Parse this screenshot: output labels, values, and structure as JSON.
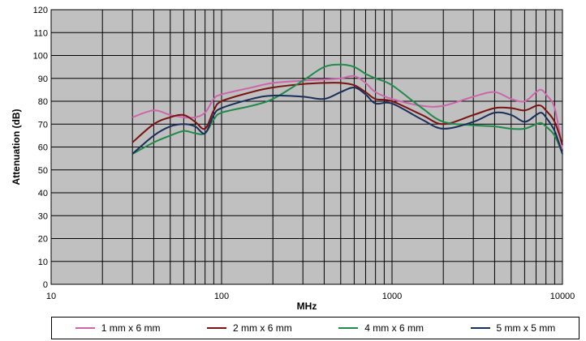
{
  "chart_data": {
    "type": "line",
    "xlabel": "MHz",
    "ylabel": "Attenuation (dB)",
    "xscale": "log",
    "xlim": [
      10,
      10000
    ],
    "ylim": [
      0,
      120
    ],
    "xticks": [
      "10",
      "100",
      "1000",
      "10000"
    ],
    "yticks": [
      "0",
      "10",
      "20",
      "30",
      "40",
      "50",
      "60",
      "70",
      "80",
      "90",
      "100",
      "110",
      "120"
    ],
    "grid": true,
    "plot_background": "#c0c0c0",
    "legend_position": "bottom",
    "series": [
      {
        "name": "1 mm x 6 mm",
        "color": "#cc66aa",
        "points": [
          [
            30,
            73
          ],
          [
            40,
            76
          ],
          [
            50,
            74
          ],
          [
            60,
            73
          ],
          [
            70,
            73
          ],
          [
            80,
            75
          ],
          [
            90,
            81
          ],
          [
            100,
            83
          ],
          [
            150,
            86
          ],
          [
            200,
            88
          ],
          [
            300,
            89
          ],
          [
            400,
            89.5
          ],
          [
            500,
            90
          ],
          [
            600,
            91
          ],
          [
            700,
            88
          ],
          [
            800,
            84
          ],
          [
            1000,
            81
          ],
          [
            1500,
            78
          ],
          [
            2000,
            78
          ],
          [
            3000,
            82
          ],
          [
            4000,
            84
          ],
          [
            5000,
            81
          ],
          [
            6000,
            80
          ],
          [
            7000,
            84
          ],
          [
            7500,
            85
          ],
          [
            8000,
            83
          ],
          [
            9000,
            77
          ],
          [
            10000,
            59
          ]
        ]
      },
      {
        "name": "2 mm x 6 mm",
        "color": "#7a1212",
        "points": [
          [
            30,
            62
          ],
          [
            40,
            70
          ],
          [
            50,
            73
          ],
          [
            60,
            74
          ],
          [
            70,
            71
          ],
          [
            80,
            68
          ],
          [
            90,
            76
          ],
          [
            100,
            80
          ],
          [
            150,
            84
          ],
          [
            200,
            86
          ],
          [
            300,
            87.5
          ],
          [
            400,
            88
          ],
          [
            500,
            88
          ],
          [
            600,
            87
          ],
          [
            700,
            84
          ],
          [
            800,
            81
          ],
          [
            1000,
            80
          ],
          [
            1500,
            74
          ],
          [
            2000,
            70
          ],
          [
            3000,
            74
          ],
          [
            4000,
            77
          ],
          [
            5000,
            77
          ],
          [
            6000,
            76
          ],
          [
            7000,
            78
          ],
          [
            7500,
            78
          ],
          [
            8000,
            76
          ],
          [
            9000,
            71
          ],
          [
            10000,
            61
          ]
        ]
      },
      {
        "name": "4 mm x 6 mm",
        "color": "#1f8a4a",
        "points": [
          [
            30,
            57
          ],
          [
            40,
            62
          ],
          [
            50,
            65
          ],
          [
            60,
            67
          ],
          [
            70,
            66
          ],
          [
            80,
            66
          ],
          [
            90,
            72
          ],
          [
            100,
            75
          ],
          [
            150,
            78
          ],
          [
            200,
            81
          ],
          [
            300,
            89
          ],
          [
            400,
            95
          ],
          [
            500,
            96
          ],
          [
            600,
            95
          ],
          [
            700,
            92
          ],
          [
            800,
            90
          ],
          [
            1000,
            87
          ],
          [
            1500,
            77
          ],
          [
            2000,
            71
          ],
          [
            3000,
            69.5
          ],
          [
            4000,
            69
          ],
          [
            5000,
            68
          ],
          [
            6000,
            68
          ],
          [
            7000,
            70
          ],
          [
            7500,
            70.5
          ],
          [
            8000,
            69
          ],
          [
            9000,
            65
          ],
          [
            10000,
            57
          ]
        ]
      },
      {
        "name": "5 mm x 5 mm",
        "color": "#1a2e5a",
        "points": [
          [
            30,
            57
          ],
          [
            40,
            65
          ],
          [
            50,
            69
          ],
          [
            60,
            70
          ],
          [
            70,
            69
          ],
          [
            80,
            66
          ],
          [
            90,
            74
          ],
          [
            100,
            77
          ],
          [
            150,
            81
          ],
          [
            200,
            82.5
          ],
          [
            300,
            82
          ],
          [
            400,
            81
          ],
          [
            500,
            84
          ],
          [
            600,
            86
          ],
          [
            700,
            83
          ],
          [
            800,
            79
          ],
          [
            1000,
            79
          ],
          [
            1500,
            72
          ],
          [
            2000,
            68
          ],
          [
            3000,
            71
          ],
          [
            4000,
            75
          ],
          [
            5000,
            74
          ],
          [
            6000,
            71
          ],
          [
            7000,
            74
          ],
          [
            7500,
            75
          ],
          [
            8000,
            73
          ],
          [
            9000,
            67
          ],
          [
            10000,
            57
          ]
        ]
      }
    ]
  }
}
